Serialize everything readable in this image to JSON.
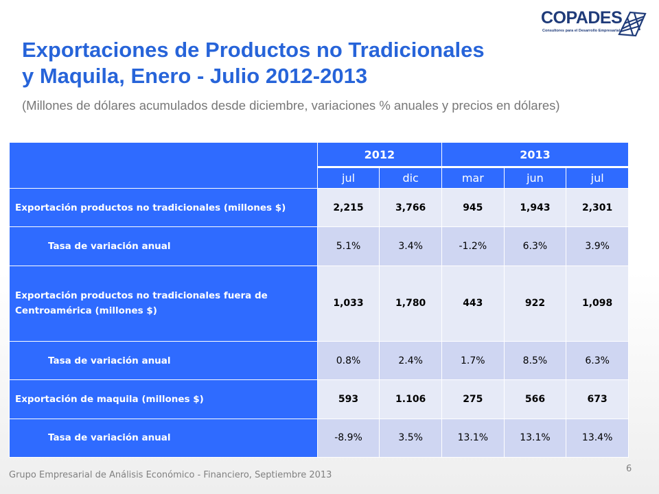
{
  "logo": {
    "name": "COPADES",
    "tagline": "Consultores para el Desarrollo Empresarial"
  },
  "title_line1": "Exportaciones de Productos no Tradicionales",
  "title_line2": "y Maquila, Enero - Julio 2012-2013",
  "subtitle": "(Millones de dólares acumulados desde diciembre, variaciones % anuales y precios en dólares)",
  "table": {
    "years": [
      "2012",
      "2013"
    ],
    "months": [
      "jul",
      "dic",
      "mar",
      "jun",
      "jul"
    ],
    "rows": [
      {
        "label": "Exportación productos no tradicionales (millones $)",
        "values": [
          "2,215",
          "3,766",
          "945",
          "1,943",
          "2,301"
        ]
      },
      {
        "label": "Tasa de variación anual",
        "values": [
          "5.1%",
          "3.4%",
          "-1.2%",
          "6.3%",
          "3.9%"
        ]
      },
      {
        "label": "Exportación productos no tradicionales fuera de Centroamérica (millones $)",
        "values": [
          "1,033",
          "1,780",
          "443",
          "922",
          "1,098"
        ]
      },
      {
        "label": "Tasa de variación anual",
        "values": [
          "0.8%",
          "2.4%",
          "1.7%",
          "8.5%",
          "6.3%"
        ]
      },
      {
        "label": "Exportación de maquila (millones $)",
        "values": [
          "593",
          "1.106",
          "275",
          "566",
          "673"
        ]
      },
      {
        "label": "Tasa de variación anual",
        "values": [
          "-8.9%",
          "3.5%",
          "13.1%",
          "13.1%",
          "13.4%"
        ]
      }
    ]
  },
  "footer": "Grupo Empresarial de Análisis Económico - Financiero, Septiembre 2013",
  "page_number": "6",
  "colors": {
    "title": "#2764d9",
    "header_fill": "#2f6bff",
    "row_light": "#e6eaf7",
    "row_dark": "#cfd6f2",
    "logo": "#1f3b79"
  }
}
